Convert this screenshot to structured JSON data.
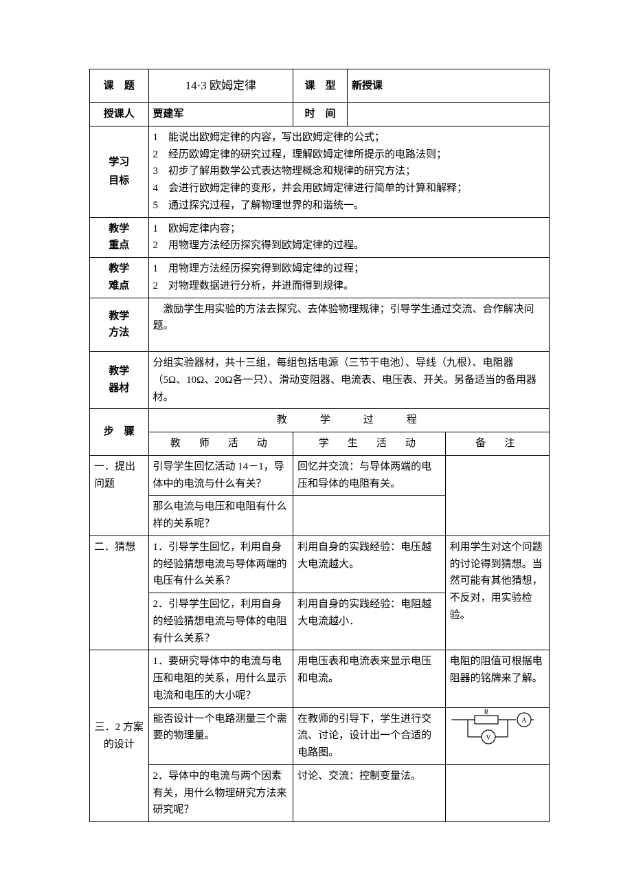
{
  "labels": {
    "topic": "课　题",
    "type": "课　型",
    "teacher": "授课人",
    "time": "时　间",
    "objectives": "学习目标",
    "keypoints": "教学重点",
    "difficulties": "教学难点",
    "methods": "教学方法",
    "equipment": "教学器材",
    "steps": "步　骤",
    "process": "教　　学　　过　　程",
    "teacher_act": "教　师　活　动",
    "student_act": "学　生　活　动",
    "notes": "备　注"
  },
  "header": {
    "topic": "14·3 欧姆定律",
    "type": "新授课",
    "teacher": "贾建军",
    "time": ""
  },
  "objectives": [
    "1　能说出欧姆定律的内容，写出欧姆定律的公式；",
    "2　经历欧姆定律的研究过程，理解欧姆定律所提示的电路法则；",
    "3　初步了解用数学公式表达物理概念和规律的研究方法；",
    "4　会进行欧姆定律的变形，并会用欧姆定律进行简单的计算和解释；",
    "5　通过探究过程，了解物理世界的和谐统一。"
  ],
  "keypoints": [
    "1　欧姆定律内容；",
    "2　用物理方法经历探究得到欧姆定律的过程。"
  ],
  "difficulties": [
    "1　用物理方法经历探究得到欧姆定律的过程；",
    "2　对物理数据进行分析，并进而得到规律。"
  ],
  "methods": "　激励学生用实验的方法去探究、去体验物理规律；引导学生通过交流、合作解决问题。",
  "equipment": "分组实验器材，共十三组，每组包括电源（三节干电池）、导线（九根）、电阻器（5Ω、10Ω、20Ω各一只）、滑动变阻器、电流表、电压表、开关。另备适当的备用器材。",
  "rows": {
    "r1": {
      "step": "一．提出问题",
      "t": "引导学生回忆活动 14－1，导体中的电流与什么有关？",
      "s": "回忆并交流：与导体两端的电压和导体的电阻有关。",
      "n": ""
    },
    "r1b": {
      "t": "那么电流与电压和电阻有什么样的关系呢？"
    },
    "r2": {
      "step": "二．猜想",
      "t": "1．引导学生回忆，利用自身的经验猜想电流与导体两端的电压有什么关系？",
      "s": "利用自身的实践经验：电压越大电流越大。",
      "n": "利用学生对这个问题的讨论得到猜想。当然可能有其他猜想，不反对，用实验检验。"
    },
    "r2b": {
      "t": "2．引导学生回忆，利用自身的经验猜想电流与导体的电阻有什么关系？",
      "s": "利用自身的实践经验：电阻越大电流越小．"
    },
    "r3": {
      "step": "三．2 方案的设计",
      "t": "1．要研究导体中的电流与电压和电阻的关系，用什么显示电流和电压的大小呢？",
      "s": "用电压表和电流表来显示电压和电流。",
      "n": "电阻的阻值可根据电阻器的铭牌来了解。"
    },
    "r3b": {
      "t": "能否设计一个电路测量三个需要的物理量。",
      "s": "在教师的引导下，学生进行交流、讨论，设计出一个合适的电路图。"
    },
    "r3c": {
      "t": "2．导体中的电流与两个因素有关，用什么物理研究方法来研究呢？",
      "s": "讨论、交流：控制变量法。"
    }
  },
  "circuit": {
    "r_label": "R",
    "a_label": "A",
    "v_label": "V"
  }
}
